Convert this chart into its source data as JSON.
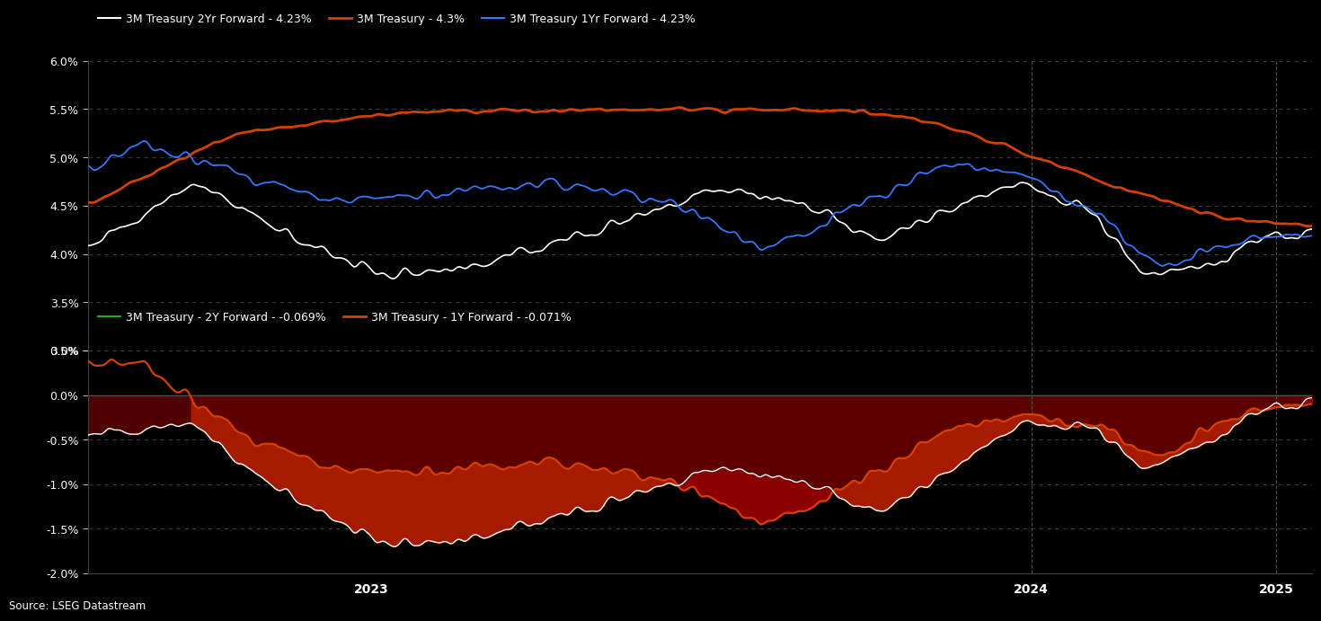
{
  "background_color": "#000000",
  "text_color": "#ffffff",
  "upper_ylim": [
    3.0,
    6.0
  ],
  "upper_yticks": [
    3.0,
    3.5,
    4.0,
    4.5,
    5.0,
    5.5,
    6.0
  ],
  "upper_ytick_labels": [
    "3.0%",
    "3.5%",
    "4.0%",
    "4.5%",
    "5.0%",
    "5.5%",
    "6.0%"
  ],
  "lower_ylim": [
    -2.0,
    0.5
  ],
  "lower_yticks": [
    -2.0,
    -1.5,
    -1.0,
    -0.5,
    0.0,
    0.5
  ],
  "lower_ytick_labels": [
    "-2.0%",
    "-1.5%",
    "-1.0%",
    "-0.5%",
    "0.0%",
    "0.5%"
  ],
  "legend_upper": [
    {
      "label": "3M Treasury 2Yr Forward - 4.23%",
      "color": "#ffffff"
    },
    {
      "label": "3M Treasury - 4.3%",
      "color": "#d44000"
    },
    {
      "label": "3M Treasury 1Yr Forward - 4.23%",
      "color": "#3377ff"
    }
  ],
  "legend_lower": [
    {
      "label": "3M Treasury - 2Y Forward - -0.069%",
      "color": "#22aa22"
    },
    {
      "label": "3M Treasury - 1Y Forward - -0.071%",
      "color": "#d44000"
    }
  ],
  "source_text": "Source: LSEG Datastream",
  "upper_line_white_color": "#ffffff",
  "upper_line_orange_color": "#d44000",
  "upper_line_blue_color": "#3377ff",
  "lower_line_green_color": "#22aa22",
  "lower_line_orange_color": "#d44000",
  "lower_fill_dark_color": "#7a0000",
  "lower_fill_light_color": "#cc3300",
  "grid_color": "#303030",
  "vline_color": "#555555"
}
